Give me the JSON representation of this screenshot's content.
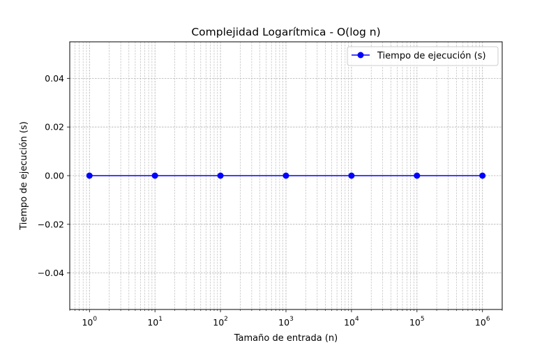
{
  "chart_data": {
    "type": "line",
    "title": "Complejidad Logarítmica - O(log n)",
    "xlabel": "Tamaño de entrada (n)",
    "ylabel": "Tiempo de ejecución (s)",
    "xscale": "log",
    "xlim": [
      0.5,
      2000000
    ],
    "ylim": [
      -0.055,
      0.055
    ],
    "x_ticks": [
      {
        "value": 1,
        "base": "10",
        "exp": "0"
      },
      {
        "value": 10,
        "base": "10",
        "exp": "1"
      },
      {
        "value": 100,
        "base": "10",
        "exp": "2"
      },
      {
        "value": 1000,
        "base": "10",
        "exp": "3"
      },
      {
        "value": 10000,
        "base": "10",
        "exp": "4"
      },
      {
        "value": 100000,
        "base": "10",
        "exp": "5"
      },
      {
        "value": 1000000,
        "base": "10",
        "exp": "6"
      }
    ],
    "y_ticks": [
      {
        "value": 0.04,
        "label": "0.04"
      },
      {
        "value": 0.02,
        "label": "0.02"
      },
      {
        "value": 0.0,
        "label": "0.00"
      },
      {
        "value": -0.02,
        "label": "−0.02"
      },
      {
        "value": -0.04,
        "label": "−0.04"
      }
    ],
    "grid": true,
    "legend_position": "top-right",
    "series": [
      {
        "name": "Tiempo de ejecución (s)",
        "color": "#0000ff",
        "marker": "circle",
        "x": [
          1,
          10,
          100,
          1000,
          10000,
          100000,
          1000000
        ],
        "y": [
          0,
          0,
          0,
          0,
          0,
          0,
          0
        ]
      }
    ]
  }
}
